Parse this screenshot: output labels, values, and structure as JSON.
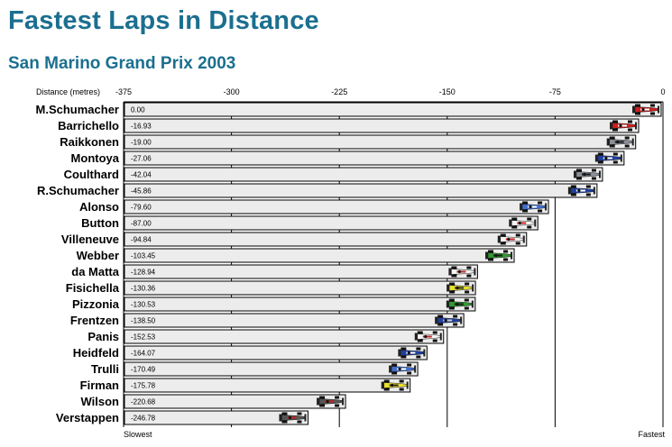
{
  "title": "Fastest Laps in Distance",
  "subtitle": "San Marino Grand Prix 2003",
  "chart_data": {
    "type": "bar",
    "orientation": "horizontal",
    "title": "Fastest Laps in Distance",
    "subtitle": "San Marino Grand Prix 2003",
    "xlabel": "Distance (metres)",
    "xlim": [
      -375,
      0
    ],
    "xticks": [
      "-375",
      "-300",
      "-225",
      "-150",
      "-75",
      "0"
    ],
    "x_tick_values": [
      -375,
      -300,
      -225,
      -150,
      -75,
      0
    ],
    "left_end_label": "Slowest",
    "right_end_label": "Fastest",
    "grid": "vertical",
    "categories": [
      "M.Schumacher",
      "Barrichello",
      "Raikkonen",
      "Montoya",
      "Coulthard",
      "R.Schumacher",
      "Alonso",
      "Button",
      "Villeneuve",
      "Webber",
      "da Matta",
      "Fisichella",
      "Pizzonia",
      "Frentzen",
      "Panis",
      "Heidfeld",
      "Trulli",
      "Firman",
      "Wilson",
      "Verstappen"
    ],
    "values": [
      0.0,
      -16.93,
      -19.0,
      -27.06,
      -42.04,
      -45.86,
      -79.6,
      -87.0,
      -94.84,
      -103.45,
      -128.94,
      -130.36,
      -130.53,
      -138.5,
      -152.53,
      -164.07,
      -170.49,
      -175.78,
      -220.68,
      -246.78
    ],
    "value_labels": [
      "0.00",
      "-16.93",
      "-19.00",
      "-27.06",
      "-42.04",
      "-45.86",
      "-79.60",
      "-87.00",
      "-94.84",
      "-103.45",
      "-128.94",
      "-130.36",
      "-130.53",
      "-138.50",
      "-152.53",
      "-164.07",
      "-170.49",
      "-175.78",
      "-220.68",
      "-246.78"
    ],
    "car_colors": [
      "#cc1f1f",
      "#cc1f1f",
      "#8a8f98",
      "#1f3f9f",
      "#8a8f98",
      "#1f3f9f",
      "#3f6fcf",
      "#f4f4f4",
      "#f4f4f4",
      "#2f9a2f",
      "#f4f4f4",
      "#e8e02f",
      "#2f9a2f",
      "#1f3f9f",
      "#f4f4f4",
      "#1f3f9f",
      "#3f6fcf",
      "#e8e02f",
      "#555555",
      "#555555"
    ],
    "car_accents": [
      "#ffffff",
      "#ffffff",
      "#1a1a1a",
      "#ffffff",
      "#1a1a1a",
      "#ffffff",
      "#ffffff",
      "#cc1f1f",
      "#cc1f1f",
      "#1a1a1a",
      "#cc1f1f",
      "#2a2a2a",
      "#1a1a1a",
      "#cccccc",
      "#cc1f1f",
      "#ffffff",
      "#ffffff",
      "#2a2a2a",
      "#cc1f1f",
      "#cc1f1f"
    ],
    "bar_fill": "#ececec",
    "bar_stroke": "#000000"
  }
}
